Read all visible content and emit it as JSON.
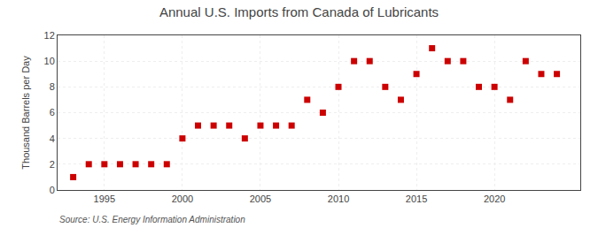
{
  "chart_data": {
    "type": "scatter",
    "title": "Annual U.S. Imports from Canada of Lubricants",
    "ylabel": "Thousand Barrels per Day",
    "source": "Source: U.S. Energy Information Administration",
    "x": [
      1993,
      1994,
      1995,
      1996,
      1997,
      1998,
      1999,
      2000,
      2001,
      2002,
      2003,
      2004,
      2005,
      2006,
      2007,
      2008,
      2009,
      2010,
      2011,
      2012,
      2013,
      2014,
      2015,
      2016,
      2017,
      2018,
      2019,
      2020,
      2021,
      2022,
      2023,
      2024
    ],
    "values": [
      1,
      2,
      2,
      2,
      2,
      2,
      2,
      4,
      5,
      5,
      5,
      4,
      5,
      5,
      5,
      7,
      6,
      8,
      10,
      10,
      8,
      7,
      9,
      11,
      10,
      10,
      8,
      8,
      7,
      10,
      9,
      9
    ],
    "color": "#cc0000",
    "marker": "square",
    "xlim": [
      1992,
      2025.5
    ],
    "xticks": [
      1995,
      2000,
      2005,
      2010,
      2015,
      2020
    ],
    "ylim": [
      0,
      12
    ],
    "yticks": [
      0,
      2,
      4,
      6,
      8,
      10,
      12
    ],
    "grid": true
  }
}
